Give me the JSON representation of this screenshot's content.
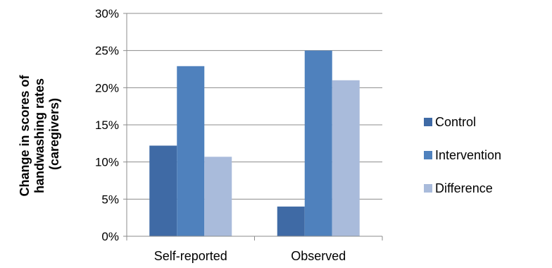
{
  "chart_data": {
    "type": "bar",
    "categories": [
      "Self-reported",
      "Observed"
    ],
    "series": [
      {
        "name": "Control",
        "values": [
          12.2,
          4.0
        ],
        "color": "#3f6aa5"
      },
      {
        "name": "Intervention",
        "values": [
          22.9,
          25.0
        ],
        "color": "#4f81bd"
      },
      {
        "name": "Difference",
        "values": [
          10.7,
          21.0
        ],
        "color": "#a9bbdb"
      }
    ],
    "ylabel_lines": [
      "Change in  scores of",
      "handwashing rates",
      "(caregivers)"
    ],
    "ylim": [
      0,
      30
    ],
    "yticks": [
      "0%",
      "5%",
      "10%",
      "15%",
      "20%",
      "25%",
      "30%"
    ],
    "grid": true,
    "legend_position": "right"
  }
}
